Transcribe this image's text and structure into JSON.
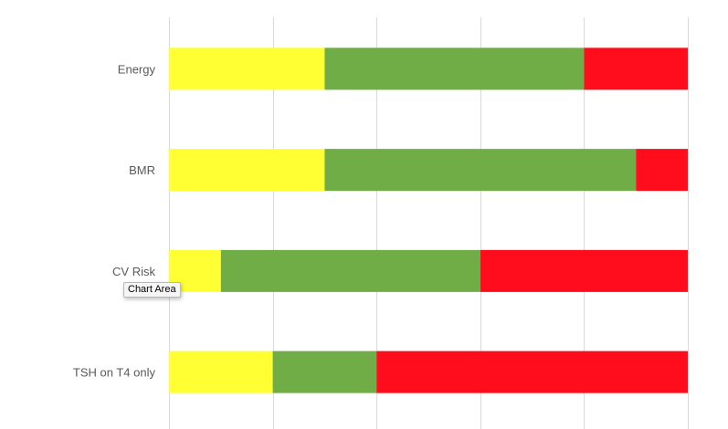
{
  "chart_data": {
    "type": "bar",
    "orientation": "horizontal",
    "stacked": true,
    "categories": [
      "Energy",
      "BMR",
      "CV Risk",
      "TSH on T4 only"
    ],
    "series": [
      {
        "color": "#FFFF33",
        "values": [
          30,
          30,
          10,
          20
        ]
      },
      {
        "color": "#70AD47",
        "values": [
          50,
          60,
          50,
          20
        ]
      },
      {
        "color": "#FF0D1C",
        "values": [
          20,
          10,
          40,
          60
        ]
      }
    ],
    "xlim": [
      0,
      100
    ],
    "gridlines": "vertical",
    "x_tick_labels_shown": false,
    "legend": "none"
  },
  "tooltip": {
    "text": "Chart Area"
  }
}
